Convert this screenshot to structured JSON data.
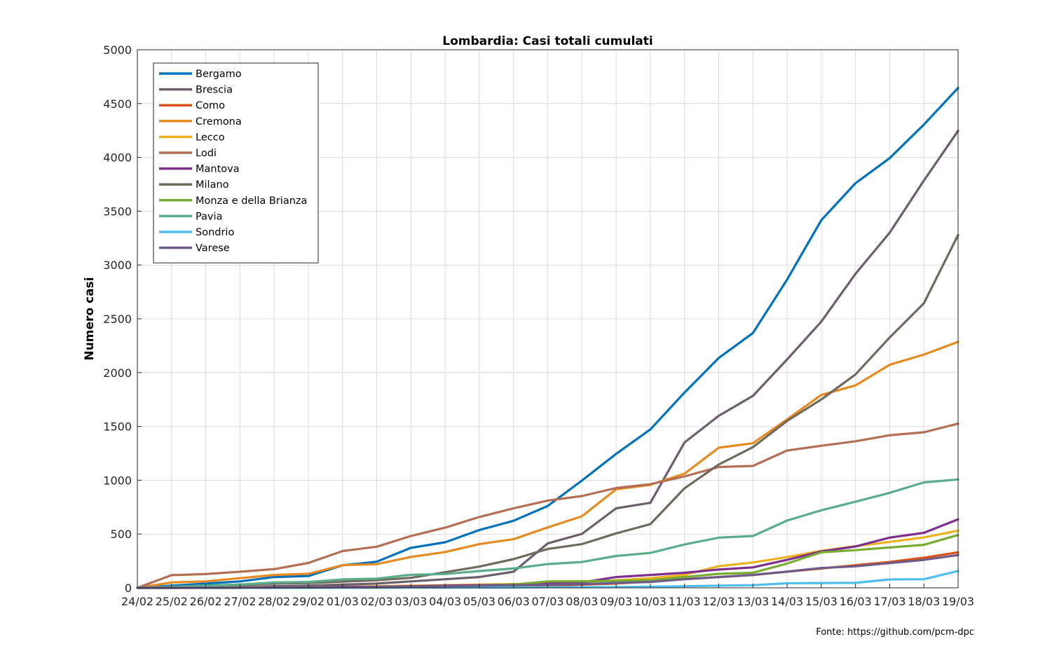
{
  "chart_data": {
    "type": "line",
    "title": "Lombardia: Casi totali cumulati",
    "xlabel": "",
    "ylabel": "Numero casi",
    "source_note": "Fonte: https://github.com/pcm-dpc",
    "ylim": [
      0,
      5000
    ],
    "yticks": [
      0,
      500,
      1000,
      1500,
      2000,
      2500,
      3000,
      3500,
      4000,
      4500,
      5000
    ],
    "grid": true,
    "legend_position": "top-left",
    "categories": [
      "24/02",
      "25/02",
      "26/02",
      "27/02",
      "28/02",
      "29/02",
      "01/03",
      "02/03",
      "03/03",
      "04/03",
      "05/03",
      "06/03",
      "07/03",
      "08/03",
      "09/03",
      "10/03",
      "11/03",
      "12/03",
      "13/03",
      "14/03",
      "15/03",
      "16/03",
      "17/03",
      "18/03",
      "19/03"
    ],
    "series": [
      {
        "name": "Bergamo",
        "color": "#0072BD",
        "values": [
          0,
          20,
          40,
          60,
          100,
          110,
          209,
          243,
          372,
          423,
          537,
          623,
          761,
          997,
          1245,
          1472,
          1815,
          2136,
          2368,
          2864,
          3416,
          3760,
          3993,
          4305,
          4645
        ]
      },
      {
        "name": "Brescia",
        "color": "#6A5F6A",
        "values": [
          0,
          5,
          10,
          12,
          15,
          20,
          30,
          40,
          60,
          80,
          100,
          150,
          413,
          501,
          739,
          790,
          1351,
          1598,
          1784,
          2122,
          2473,
          2918,
          3300,
          3784,
          4247
        ]
      },
      {
        "name": "Como",
        "color": "#D95319",
        "values": [
          0,
          0,
          1,
          1,
          2,
          2,
          3,
          3,
          4,
          5,
          10,
          15,
          20,
          30,
          40,
          60,
          80,
          100,
          120,
          150,
          180,
          210,
          240,
          280,
          330
        ]
      },
      {
        "name": "Cremona",
        "color": "#E68A21",
        "values": [
          0,
          50,
          60,
          90,
          120,
          130,
          210,
          220,
          287,
          333,
          406,
          452,
          562,
          665,
          916,
          957,
          1061,
          1302,
          1344,
          1565,
          1792,
          1881,
          2073,
          2167,
          2286
        ]
      },
      {
        "name": "Lecco",
        "color": "#EDB120",
        "values": [
          0,
          2,
          3,
          4,
          5,
          6,
          10,
          15,
          20,
          25,
          30,
          35,
          40,
          55,
          70,
          90,
          120,
          201,
          236,
          286,
          344,
          387,
          427,
          468,
          532
        ]
      },
      {
        "name": "Lodi",
        "color": "#B36E53",
        "values": [
          0,
          118,
          128,
          150,
          174,
          231,
          342,
          382,
          482,
          559,
          658,
          739,
          811,
          853,
          928,
          963,
          1035,
          1123,
          1133,
          1276,
          1320,
          1362,
          1418,
          1445,
          1526
        ]
      },
      {
        "name": "Mantova",
        "color": "#7E2F8E",
        "values": [
          0,
          0,
          0,
          0,
          5,
          5,
          10,
          10,
          15,
          20,
          25,
          30,
          40,
          50,
          100,
          120,
          140,
          170,
          190,
          260,
          338,
          384,
          467,
          511,
          636
        ]
      },
      {
        "name": "Milano",
        "color": "#6F6A5E",
        "values": [
          0,
          10,
          20,
          30,
          40,
          45,
          58,
          70,
          93,
          145,
          197,
          267,
          361,
          406,
          506,
          592,
          925,
          1146,
          1307,
          1551,
          1750,
          1983,
          2326,
          2644,
          3278
        ]
      },
      {
        "name": "Monza e della Brianza",
        "color": "#77AC30",
        "values": [
          0,
          0,
          1,
          2,
          3,
          4,
          5,
          6,
          10,
          15,
          20,
          30,
          60,
          61,
          65,
          70,
          100,
          130,
          140,
          226,
          330,
          350,
          375,
          400,
          491
        ]
      },
      {
        "name": "Pavia",
        "color": "#5AAD8C",
        "values": [
          0,
          10,
          20,
          30,
          50,
          55,
          78,
          86,
          121,
          128,
          156,
          180,
          221,
          240,
          296,
          324,
          403,
          466,
          482,
          625,
          721,
          800,
          883,
          980,
          1007
        ]
      },
      {
        "name": "Sondrio",
        "color": "#4DBEEE",
        "values": [
          0,
          0,
          0,
          0,
          0,
          0,
          1,
          1,
          2,
          2,
          3,
          3,
          5,
          6,
          7,
          10,
          15,
          20,
          25,
          42,
          45,
          46,
          78,
          80,
          157
        ]
      },
      {
        "name": "Varese",
        "color": "#6E5B8A",
        "values": [
          0,
          0,
          1,
          2,
          3,
          4,
          5,
          6,
          10,
          15,
          20,
          25,
          30,
          35,
          45,
          55,
          80,
          100,
          120,
          151,
          184,
          200,
          230,
          260,
          305
        ]
      }
    ]
  }
}
